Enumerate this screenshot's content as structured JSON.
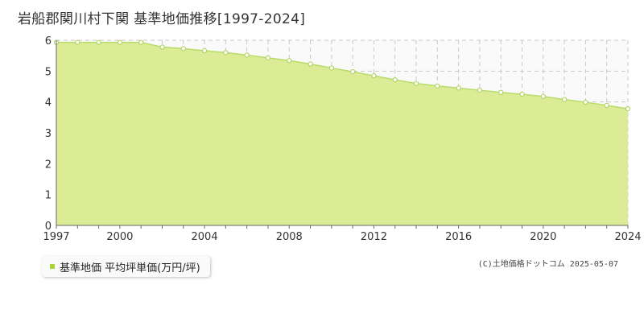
{
  "title": "岩船郡関川村下関 基準地価推移[1997-2024]",
  "legend": {
    "label": "基準地価 平均坪単価(万円/坪)"
  },
  "credit": "(C)土地価格ドットコム 2025-05-07",
  "colors": {
    "fill": "#dcec96",
    "line": "#b8dc6a",
    "marker_stroke": "#a9cf55",
    "grid": "#c8c8c8",
    "accent": "#a8d43a"
  },
  "chart_data": {
    "type": "area",
    "title": "岩船郡関川村下関 基準地価推移[1997-2024]",
    "xlabel": "",
    "ylabel": "",
    "xlim": [
      1997,
      2024
    ],
    "ylim": [
      0,
      6
    ],
    "yticks": [
      0,
      1,
      2,
      3,
      4,
      5,
      6
    ],
    "xticks": [
      1997,
      2000,
      2004,
      2008,
      2012,
      2016,
      2020,
      2024
    ],
    "grid": true,
    "legend_position": "bottom-left",
    "series": [
      {
        "name": "基準地価 平均坪単価(万円/坪)",
        "x": [
          1997,
          1998,
          1999,
          2000,
          2001,
          2002,
          2003,
          2004,
          2005,
          2006,
          2007,
          2008,
          2009,
          2010,
          2011,
          2012,
          2013,
          2014,
          2015,
          2016,
          2017,
          2018,
          2019,
          2020,
          2021,
          2022,
          2023,
          2024
        ],
        "values": [
          5.93,
          5.93,
          5.93,
          5.93,
          5.93,
          5.78,
          5.73,
          5.66,
          5.6,
          5.52,
          5.43,
          5.34,
          5.23,
          5.1,
          4.98,
          4.85,
          4.72,
          4.6,
          4.52,
          4.45,
          4.38,
          4.31,
          4.25,
          4.18,
          4.08,
          3.99,
          3.89,
          3.78
        ]
      }
    ]
  }
}
